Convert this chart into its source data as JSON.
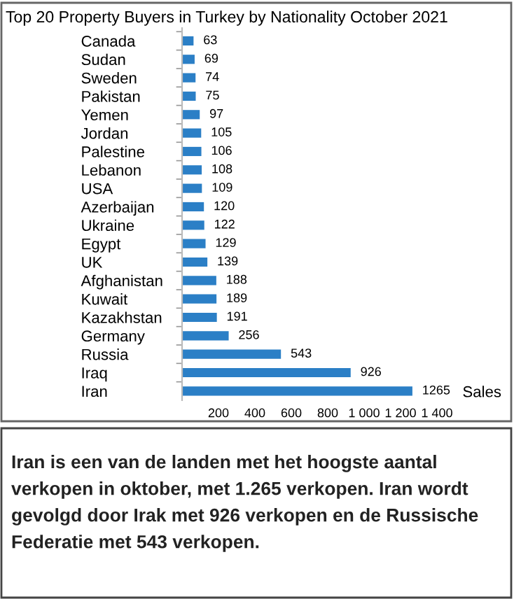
{
  "chart_data": {
    "type": "bar",
    "orientation": "horizontal",
    "title": "Top 20 Property Buyers in Turkey by Nationality October 2021",
    "xlabel": "Sales",
    "categories": [
      "Canada",
      "Sudan",
      "Sweden",
      "Pakistan",
      "Yemen",
      "Jordan",
      "Palestine",
      "Lebanon",
      "USA",
      "Azerbaijan",
      "Ukraine",
      "Egypt",
      "UK",
      "Afghanistan",
      "Kuwait",
      "Kazakhstan",
      "Germany",
      "Russia",
      "Iraq",
      "Iran"
    ],
    "values": [
      63,
      69,
      74,
      75,
      97,
      105,
      106,
      108,
      109,
      120,
      122,
      129,
      139,
      188,
      189,
      191,
      256,
      543,
      926,
      1265
    ],
    "color": "#2b7fc6",
    "data_labels": true,
    "grid": false,
    "xlim": [
      0,
      1400
    ],
    "xticks": [
      {
        "value": 0,
        "label": null
      },
      200,
      400,
      600,
      800,
      {
        "value": 1000,
        "label": "1 000"
      },
      {
        "value": 1200,
        "label": "1 200"
      },
      {
        "value": 1400,
        "label": "1 400"
      }
    ],
    "annotations": [
      "Iran is een van de landen met het hoogste aantal verkopen in oktober, met 1.265 verkopen. Iran wordt gevolgd door Irak met 926 verkopen en de Russische Federatie met 543 verkopen."
    ]
  }
}
